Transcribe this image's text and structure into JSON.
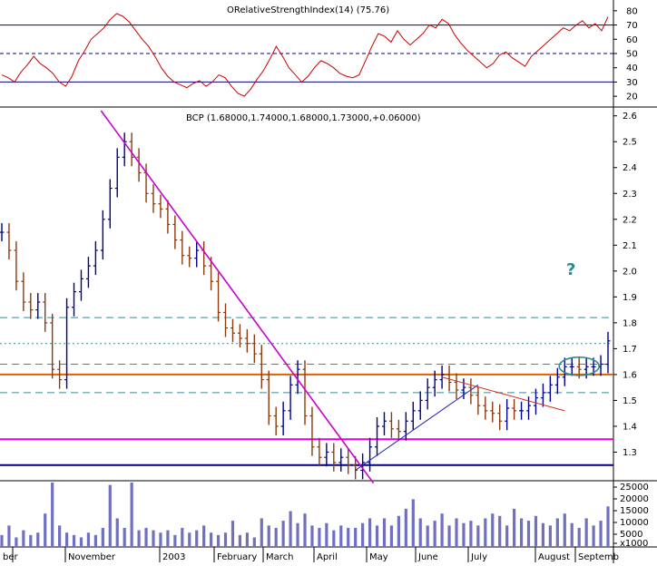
{
  "rsi_panel": {
    "title": "ORelativeStrengthIndex(14) (75.76)",
    "yticks": [
      20,
      30,
      40,
      50,
      60,
      70,
      80
    ],
    "levels": [
      30,
      50,
      70
    ]
  },
  "price_panel": {
    "title": "BCP (1.68000,1.74000,1.68000,1.73000,+0.06000)",
    "yticks": [
      "2.6",
      "2.5",
      "2.4",
      "2.3",
      "2.2",
      "2.1",
      "2.0",
      "1.9",
      "1.8",
      "1.7",
      "1.6",
      "1.5",
      "1.4",
      "1.3"
    ],
    "annotation": "?"
  },
  "volume_panel": {
    "yticks": [
      "25000",
      "20000",
      "15000",
      "10000",
      "5000",
      "x1000"
    ]
  },
  "x_axis": {
    "labels": [
      "ber",
      "November",
      "2003",
      "February",
      "March",
      "April",
      "May",
      "June",
      "July",
      "August",
      "Septemb"
    ]
  },
  "colors": {
    "up_bar": "#00008b",
    "down_bar": "#8b3a0f",
    "rsi_line": "#cc0000",
    "trendline_main": "#cc00cc",
    "support_orange": "#e06000",
    "support_magenta": "#e000e0",
    "support_navy": "#000080",
    "volume_fill": "#7070c0",
    "dashed_teal": "#3a8a9a"
  },
  "chart_data": [
    {
      "type": "line",
      "title": "ORelativeStrengthIndex(14) (75.76)",
      "series": [
        {
          "name": "RSI(14)",
          "values": [
            35,
            33,
            30,
            37,
            42,
            48,
            43,
            40,
            36,
            30,
            27,
            34,
            45,
            52,
            60,
            64,
            68,
            74,
            78,
            76,
            72,
            66,
            60,
            55,
            48,
            40,
            34,
            30,
            28,
            26,
            29,
            31,
            27,
            30,
            35,
            33,
            27,
            22,
            20,
            25,
            32,
            38,
            46,
            55,
            48,
            40,
            35,
            30,
            34,
            40,
            45,
            43,
            40,
            36,
            34,
            33,
            35,
            45,
            55,
            64,
            62,
            58,
            66,
            60,
            56,
            60,
            64,
            70,
            68,
            74,
            71,
            63,
            57,
            52,
            48,
            44,
            40,
            43,
            49,
            51,
            47,
            44,
            41,
            48,
            52,
            56,
            60,
            64,
            68,
            66,
            70,
            73,
            68,
            71,
            66,
            75.76
          ]
        }
      ],
      "ylim": [
        15,
        85
      ],
      "yticks": [
        20,
        30,
        40,
        50,
        60,
        70,
        80
      ]
    },
    {
      "type": "bar",
      "title": "BCP (1.68000,1.74000,1.68000,1.73000,+0.06000)",
      "series": [
        {
          "name": "BCP",
          "values": [
            2.15,
            2.08,
            1.96,
            1.88,
            1.85,
            1.88,
            1.8,
            1.62,
            1.58,
            1.86,
            1.92,
            1.97,
            2.02,
            2.08,
            2.2,
            2.32,
            2.44,
            2.5,
            2.44,
            2.38,
            2.3,
            2.26,
            2.24,
            2.18,
            2.12,
            2.06,
            2.05,
            2.08,
            2.02,
            1.96,
            1.84,
            1.78,
            1.76,
            1.74,
            1.72,
            1.68,
            1.58,
            1.44,
            1.4,
            1.46,
            1.56,
            1.62,
            1.44,
            1.32,
            1.28,
            1.3,
            1.26,
            1.28,
            1.25,
            1.23,
            1.26,
            1.32,
            1.4,
            1.42,
            1.39,
            1.38,
            1.42,
            1.46,
            1.5,
            1.55,
            1.58,
            1.6,
            1.57,
            1.54,
            1.55,
            1.52,
            1.48,
            1.46,
            1.45,
            1.42,
            1.47,
            1.46,
            1.46,
            1.48,
            1.51,
            1.53,
            1.56,
            1.59,
            1.63,
            1.63,
            1.62,
            1.63,
            1.63,
            1.64,
            1.73
          ]
        }
      ],
      "ylim": [
        1.2,
        2.62
      ],
      "yticks": [
        1.3,
        1.4,
        1.5,
        1.6,
        1.7,
        1.8,
        1.9,
        2.0,
        2.1,
        2.2,
        2.3,
        2.4,
        2.5,
        2.6
      ],
      "horizontal_levels": [
        1.82,
        1.72,
        1.64,
        1.6,
        1.53,
        1.35,
        1.25
      ]
    },
    {
      "type": "bar",
      "series": [
        {
          "name": "Volume",
          "values": [
            5,
            9,
            4,
            7,
            5,
            6,
            14,
            27,
            9,
            6,
            5,
            4,
            6,
            5,
            8,
            26,
            12,
            8,
            27,
            7,
            8,
            7,
            6,
            7,
            5,
            8,
            6,
            7,
            9,
            6,
            5,
            6,
            11,
            5,
            6,
            4,
            12,
            9,
            8,
            11,
            15,
            10,
            14,
            9,
            8,
            10,
            7,
            9,
            8,
            8,
            10,
            12,
            9,
            12,
            9,
            13,
            16,
            20,
            12,
            9,
            11,
            14,
            9,
            12,
            10,
            11,
            9,
            12,
            14,
            13,
            9,
            16,
            12,
            11,
            13,
            10,
            9,
            12,
            14,
            10,
            8,
            12,
            9,
            11,
            17
          ]
        }
      ],
      "ylim": [
        0,
        27
      ]
    }
  ]
}
